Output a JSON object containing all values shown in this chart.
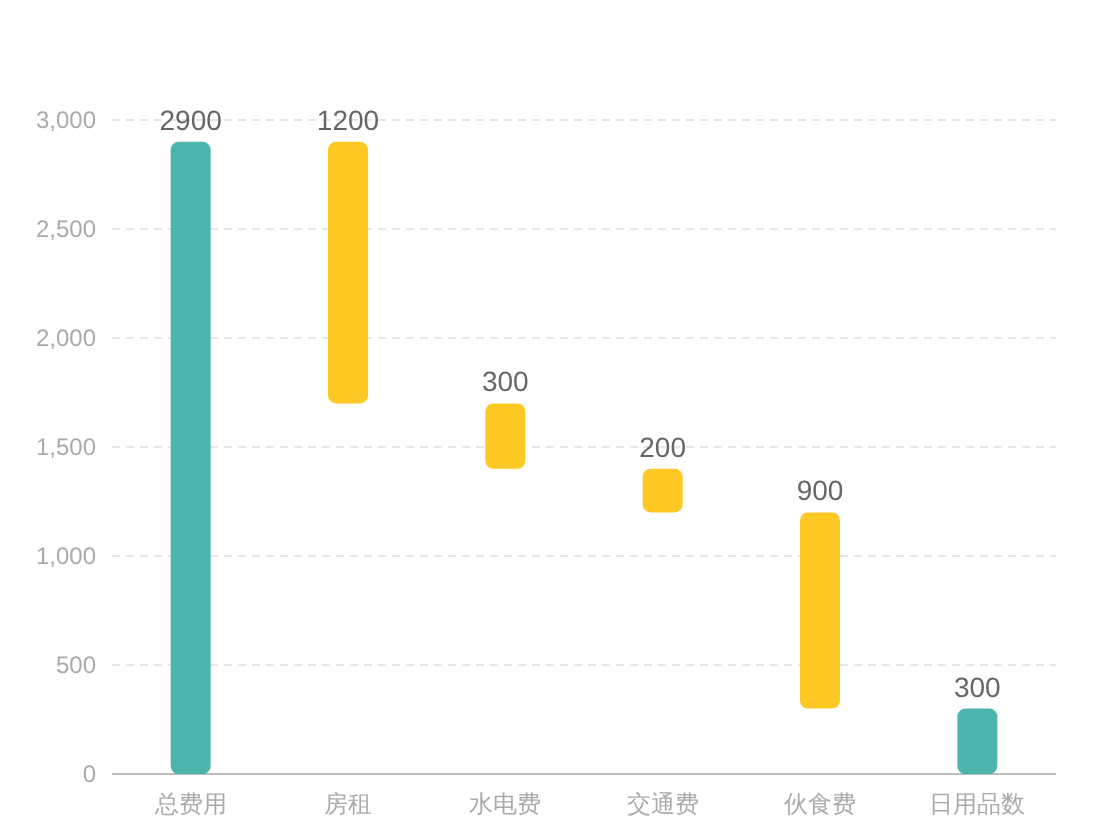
{
  "chart_data": {
    "type": "bar",
    "categories": [
      "总费用",
      "房租",
      "水电费",
      "交通费",
      "伙食费",
      "日用品数"
    ],
    "values": [
      2900,
      1200,
      300,
      200,
      900,
      300
    ],
    "base": [
      0,
      1700,
      1400,
      1200,
      300,
      0
    ],
    "colors": [
      "#4db6ac",
      "#fec825",
      "#fec825",
      "#fec825",
      "#fec825",
      "#4db6ac"
    ],
    "ylim": [
      0,
      3000
    ],
    "yticks": [
      0,
      500,
      {
        "value": 1000,
        "label": "1,000"
      },
      {
        "value": 1500,
        "label": "1,500"
      },
      {
        "value": 2000,
        "label": "2,000"
      },
      {
        "value": 2500,
        "label": "2,500"
      },
      {
        "value": 3000,
        "label": "3,000"
      }
    ],
    "grid": "y",
    "data_labels": true
  }
}
